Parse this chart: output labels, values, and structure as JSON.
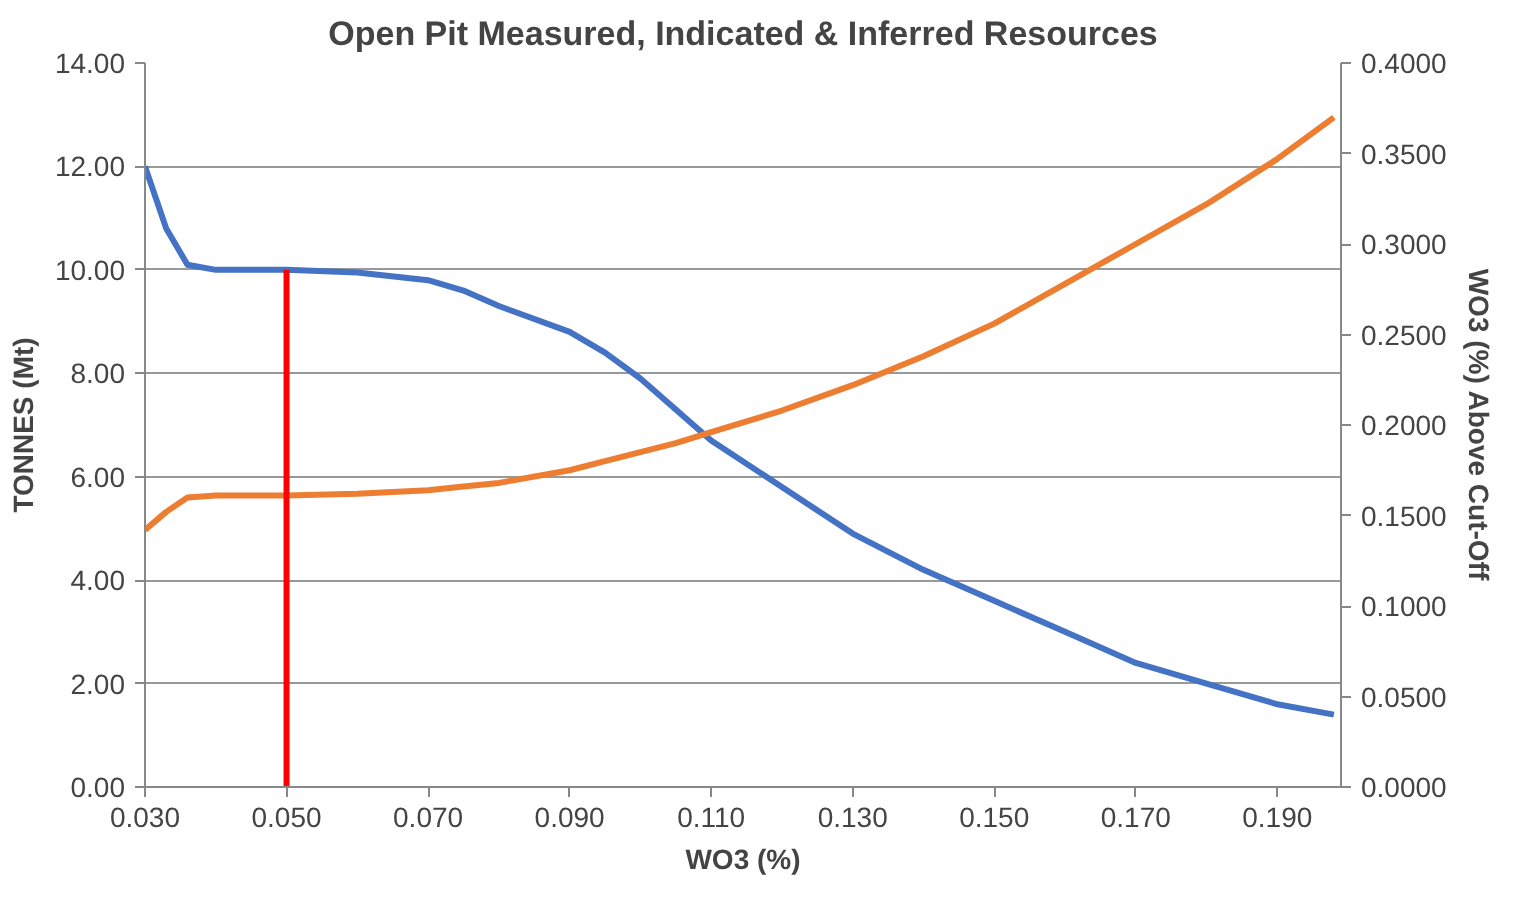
{
  "chart_data": {
    "type": "line",
    "title": "Open Pit Measured, Indicated & Inferred Resources",
    "xlabel": "WO3 (%)",
    "ylabel": "TONNES (Mt)",
    "y2label": "WO3 (%) Above Cut-Off",
    "x": [
      0.03,
      0.033,
      0.036,
      0.04,
      0.05,
      0.06,
      0.07,
      0.075,
      0.08,
      0.09,
      0.095,
      0.1,
      0.105,
      0.11,
      0.12,
      0.13,
      0.14,
      0.15,
      0.16,
      0.17,
      0.18,
      0.19,
      0.198
    ],
    "series": [
      {
        "color": "#4472c4",
        "values": [
          12.0,
          10.8,
          10.1,
          10.0,
          10.0,
          9.95,
          9.8,
          9.6,
          9.3,
          8.8,
          8.4,
          7.9,
          7.3,
          6.7,
          5.8,
          4.9,
          4.2,
          3.6,
          3.0,
          2.4,
          2.0,
          1.6,
          1.4
        ]
      },
      {
        "color": "#ed7d31",
        "axis": "y2",
        "values": [
          0.142,
          0.152,
          0.16,
          0.161,
          0.161,
          0.162,
          0.164,
          0.166,
          0.168,
          0.175,
          0.18,
          0.185,
          0.19,
          0.196,
          0.208,
          0.222,
          0.238,
          0.256,
          0.278,
          0.3,
          0.322,
          0.347,
          0.37
        ]
      },
      {
        "color": "#ff0000",
        "x": [
          0.05,
          0.05
        ],
        "values": [
          0.0,
          10.0
        ]
      }
    ],
    "xlim": [
      0.03,
      0.199
    ],
    "xticks": [
      {
        "value": 0.03,
        "label": "0.030"
      },
      {
        "value": 0.05,
        "label": "0.050"
      },
      {
        "value": 0.07,
        "label": "0.070"
      },
      {
        "value": 0.09,
        "label": "0.090"
      },
      {
        "value": 0.11,
        "label": "0.110"
      },
      {
        "value": 0.13,
        "label": "0.130"
      },
      {
        "value": 0.15,
        "label": "0.150"
      },
      {
        "value": 0.17,
        "label": "0.170"
      },
      {
        "value": 0.19,
        "label": "0.190"
      }
    ],
    "ylim": [
      0,
      14
    ],
    "yticks": [
      {
        "value": 0,
        "label": "0.00"
      },
      {
        "value": 2,
        "label": "2.00"
      },
      {
        "value": 4,
        "label": "4.00"
      },
      {
        "value": 6,
        "label": "6.00"
      },
      {
        "value": 8,
        "label": "8.00"
      },
      {
        "value": 10,
        "label": "10.00"
      },
      {
        "value": 12,
        "label": "12.00"
      },
      {
        "value": 14,
        "label": "14.00"
      }
    ],
    "y2lim": [
      0,
      0.4
    ],
    "y2ticks": [
      {
        "value": 0,
        "label": "0.0000"
      },
      {
        "value": 0.05,
        "label": "0.0500"
      },
      {
        "value": 0.1,
        "label": "0.1000"
      },
      {
        "value": 0.15,
        "label": "0.1500"
      },
      {
        "value": 0.2,
        "label": "0.2000"
      },
      {
        "value": 0.25,
        "label": "0.2500"
      },
      {
        "value": 0.3,
        "label": "0.3000"
      },
      {
        "value": 0.35,
        "label": "0.3500"
      },
      {
        "value": 0.4,
        "label": "0.4000"
      }
    ],
    "grid": "y",
    "marker": "none",
    "line_style": "solid"
  }
}
